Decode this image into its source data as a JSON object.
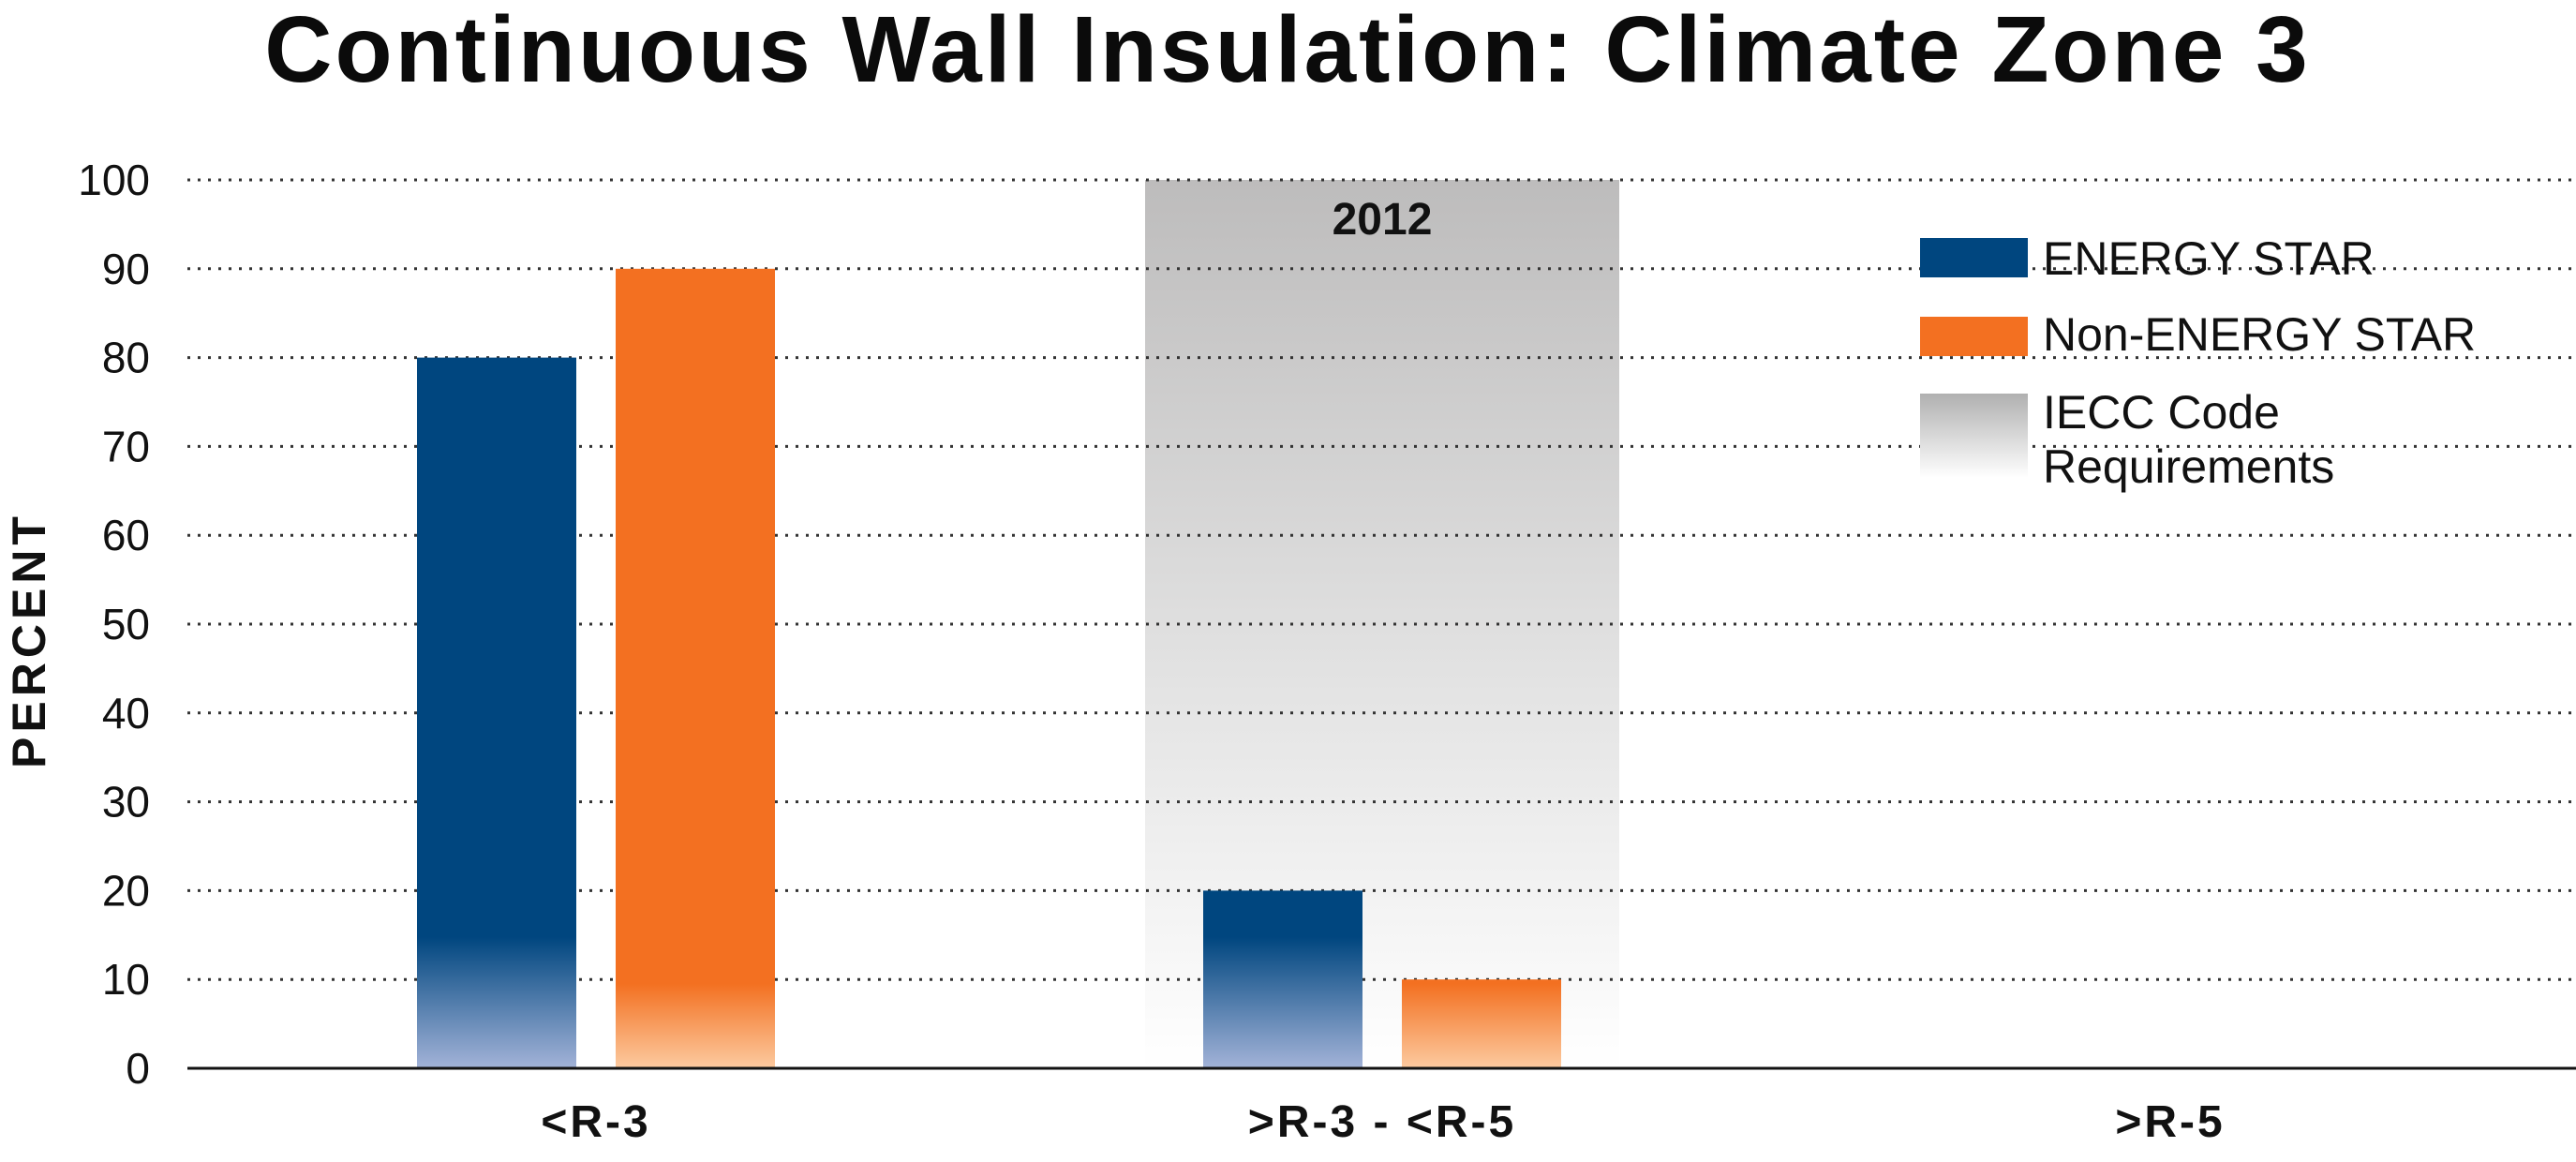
{
  "chart_data": {
    "type": "bar",
    "title": "Continuous Wall Insulation: Climate Zone 3",
    "ylabel": "PERCENT",
    "xlabel": "",
    "categories": [
      "<R-3",
      ">R-3 - <R-5",
      ">R-5"
    ],
    "series": [
      {
        "name": "ENERGY STAR",
        "values": [
          80,
          20,
          0
        ],
        "color": "#00467f"
      },
      {
        "name": "Non-ENERGY STAR",
        "values": [
          90,
          10,
          0
        ],
        "color": "#f37021"
      }
    ],
    "code_region": {
      "label": "2012",
      "category": ">R-3 - <R-5",
      "legend": "IECC Code Requirements",
      "legend_lines": [
        "IECC Code",
        "Requirements"
      ],
      "color": "#bdbcbc"
    },
    "ylim": [
      0,
      100
    ],
    "yticks": [
      0,
      10,
      20,
      30,
      40,
      50,
      60,
      70,
      80,
      90,
      100
    ],
    "grid": true,
    "grid_style": "dotted",
    "legend_position": "top-right"
  }
}
